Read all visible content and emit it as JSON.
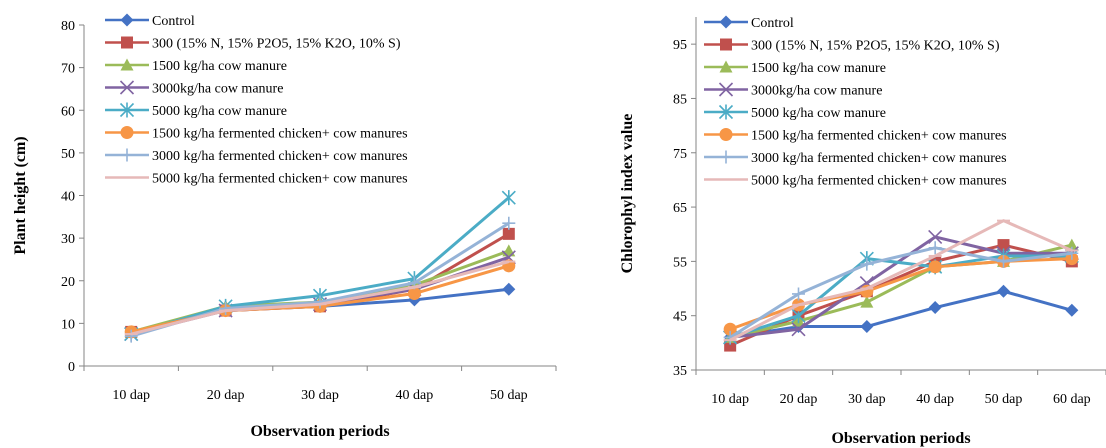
{
  "chart_data": [
    {
      "type": "line",
      "ylabel": "Plant height (cm)",
      "xlabel": "Observation periods",
      "categories": [
        "10 dap",
        "20 dap",
        "30 dap",
        "40 dap",
        "50 dap"
      ],
      "yticks": [
        "0",
        "10",
        "20",
        "30",
        "40",
        "50",
        "60",
        "70",
        "80"
      ],
      "ylim": [
        0,
        80
      ],
      "legend_position": "top-left",
      "grid": false,
      "series": [
        {
          "name": "Control",
          "color": "#4472C4",
          "marker": "diamond",
          "values": [
            8,
            13,
            14,
            15.5,
            18
          ]
        },
        {
          "name": "300 (15% N, 15% P2O5, 15% K2O, 10% S)",
          "color": "#C0504D",
          "marker": "square",
          "values": [
            8,
            13,
            14,
            18,
            31
          ]
        },
        {
          "name": "1500 kg/ha cow manure",
          "color": "#9BBB59",
          "marker": "triangle",
          "values": [
            8,
            14,
            15,
            19,
            27
          ]
        },
        {
          "name": "3000kg/ha cow manure",
          "color": "#8064A2",
          "marker": "x",
          "values": [
            7.5,
            13,
            14.5,
            18,
            25.5
          ]
        },
        {
          "name": "5000 kg/ha cow manure",
          "color": "#4BACC6",
          "marker": "star",
          "values": [
            7.5,
            14,
            16.5,
            20.5,
            39.5
          ]
        },
        {
          "name": "1500 kg/ha fermented chicken+ cow manures",
          "color": "#F79646",
          "marker": "circle",
          "values": [
            8,
            13,
            14,
            17,
            23.5
          ]
        },
        {
          "name": "3000 kg/ha fermented chicken+ cow manures",
          "color": "#95B3D7",
          "marker": "plus",
          "values": [
            7,
            13.5,
            15,
            19.5,
            33.5
          ]
        },
        {
          "name": "5000 kg/ha fermented chicken+ cow manures",
          "color": "#E6B9B8",
          "marker": "dash",
          "values": [
            7.5,
            13,
            14.5,
            18.5,
            24.5
          ]
        }
      ]
    },
    {
      "type": "line",
      "ylabel": "Chlorophyl index value",
      "xlabel": "Observation periods",
      "categories": [
        "10 dap",
        "20 dap",
        "30 dap",
        "40 dap",
        "50 dap",
        "60 dap"
      ],
      "yticks": [
        "35",
        "45",
        "55",
        "65",
        "75",
        "85",
        "95"
      ],
      "ylim": [
        35,
        100
      ],
      "legend_position": "top-left",
      "grid": false,
      "series": [
        {
          "name": "Control",
          "color": "#4472C4",
          "marker": "diamond",
          "values": [
            41,
            43,
            43,
            46.5,
            49.5,
            46
          ]
        },
        {
          "name": "300 (15% N, 15% P2O5, 15% K2O, 10% S)",
          "color": "#C0504D",
          "marker": "square",
          "values": [
            39.5,
            45,
            49.5,
            55,
            58,
            55
          ]
        },
        {
          "name": "1500 kg/ha cow manure",
          "color": "#9BBB59",
          "marker": "triangle",
          "values": [
            41,
            44,
            47.5,
            54,
            55,
            58
          ]
        },
        {
          "name": "3000kg/ha cow manure",
          "color": "#8064A2",
          "marker": "x",
          "values": [
            41,
            42.5,
            51,
            59.5,
            56.5,
            56.5
          ]
        },
        {
          "name": "5000 kg/ha cow manure",
          "color": "#4BACC6",
          "marker": "star",
          "values": [
            41,
            45,
            55.5,
            54,
            56,
            56
          ]
        },
        {
          "name": "1500 kg/ha fermented chicken+ cow manures",
          "color": "#F79646",
          "marker": "circle",
          "values": [
            42.5,
            47,
            49.5,
            54,
            55,
            55.5
          ]
        },
        {
          "name": "3000 kg/ha fermented chicken+ cow manures",
          "color": "#95B3D7",
          "marker": "plus",
          "values": [
            41,
            49,
            54.5,
            57.5,
            55,
            56.5
          ]
        },
        {
          "name": "5000 kg/ha fermented chicken+ cow manures",
          "color": "#E6B9B8",
          "marker": "dash",
          "values": [
            40.5,
            47,
            50,
            56,
            62.5,
            57
          ]
        }
      ]
    }
  ]
}
